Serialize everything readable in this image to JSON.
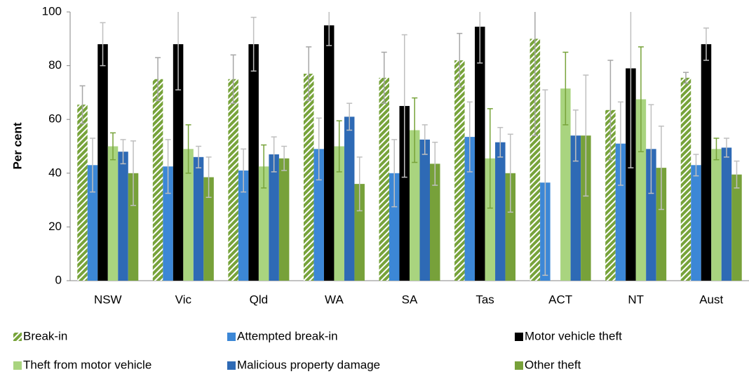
{
  "chart_data": {
    "type": "bar",
    "y_label": "Per cent",
    "categories": [
      "NSW",
      "Vic",
      "Qld",
      "WA",
      "SA",
      "Tas",
      "ACT",
      "NT",
      "Aust"
    ],
    "ylim": [
      0,
      100
    ],
    "yticks": [
      0,
      20,
      40,
      60,
      80,
      100
    ],
    "series": [
      {
        "name": "Break-in",
        "color": "#77a33a",
        "pattern": "hatch",
        "error_color": "#a6a6a6",
        "values": [
          65.5,
          75,
          75,
          77,
          75.5,
          82,
          90,
          63.5,
          75.5
        ],
        "errors": [
          7,
          8,
          9,
          10,
          9.5,
          10,
          36,
          18.5,
          2
        ]
      },
      {
        "name": "Attempted break-in",
        "color": "#3c87d6",
        "error_color": "#bfbfbf",
        "values": [
          43,
          42.5,
          41,
          49,
          40,
          53.5,
          36.5,
          51,
          43
        ],
        "errors": [
          10,
          10,
          8,
          11.5,
          12.5,
          13,
          34.5,
          15.5,
          4
        ]
      },
      {
        "name": "Motor vehicle theft",
        "color": "#000000",
        "error_color": "#bfbfbf",
        "values": [
          88,
          88,
          88,
          95,
          65,
          94.5,
          null,
          79,
          88
        ],
        "errors": [
          8,
          17,
          10,
          7.5,
          26.5,
          13.5,
          null,
          37,
          6
        ]
      },
      {
        "name": "Theft from motor vehicle",
        "color": "#a9d47f",
        "error_color": "#77a33a",
        "values": [
          50,
          49,
          42.5,
          50,
          56,
          45.5,
          71.5,
          67.5,
          49
        ],
        "errors": [
          5,
          9,
          8,
          9.5,
          12,
          18.5,
          13.5,
          19.5,
          4
        ]
      },
      {
        "name": "Malicious property damage",
        "color": "#2e6ab5",
        "error_color": "#bfbfbf",
        "values": [
          48,
          46,
          47,
          61,
          52.5,
          51.5,
          54,
          49,
          49.5
        ],
        "errors": [
          4.5,
          4,
          6.5,
          5,
          5.5,
          5.5,
          9.5,
          16.5,
          3.5
        ]
      },
      {
        "name": "Other theft",
        "color": "#77a13a",
        "error_color": "#bfbfbf",
        "values": [
          40,
          38.5,
          45.5,
          36,
          43.5,
          40,
          54,
          42,
          39.5
        ],
        "errors": [
          12,
          7.5,
          4.5,
          10,
          8,
          14.5,
          22.5,
          15.5,
          5
        ]
      }
    ]
  }
}
